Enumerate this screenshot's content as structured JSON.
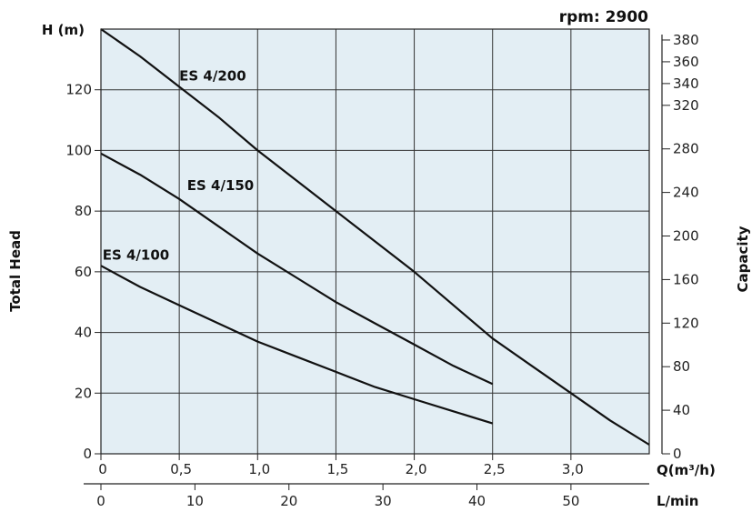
{
  "chart_data": {
    "type": "line",
    "title": "rpm: 2900",
    "ylabel": "Total Head",
    "yunit": "H (m)",
    "y2label": "Capacity",
    "xlabel": "Q(m³/h)",
    "x2label": "L/min",
    "xlim": [
      0,
      3.5
    ],
    "ylim": [
      0,
      140
    ],
    "x2lim": [
      0,
      58.33
    ],
    "y2lim": [
      0,
      390
    ],
    "xticks": [
      0,
      0.5,
      1.0,
      1.5,
      2.0,
      2.5,
      3.0
    ],
    "xtick_labels": [
      "0",
      "0,5",
      "1,0",
      "1,5",
      "2,0",
      "2,5",
      "3,0"
    ],
    "yticks": [
      0,
      20,
      40,
      60,
      80,
      100,
      120
    ],
    "ytick_labels": [
      "0",
      "20",
      "40",
      "60",
      "80",
      "100",
      "120"
    ],
    "x2ticks": [
      0,
      10,
      20,
      30,
      40,
      50
    ],
    "x2tick_labels": [
      "0",
      "10",
      "20",
      "30",
      "40",
      "50"
    ],
    "y2ticks": [
      0,
      40,
      80,
      120,
      160,
      200,
      240,
      280,
      320,
      340,
      360,
      380
    ],
    "y2tick_labels": [
      "0",
      "40",
      "80",
      "120",
      "160",
      "200",
      "240",
      "280",
      "320",
      "340",
      "360",
      "380"
    ],
    "grid": true,
    "series": [
      {
        "name": "ES 4/200",
        "x": [
          0,
          0.25,
          0.5,
          0.75,
          1.0,
          1.25,
          1.5,
          1.75,
          2.0,
          2.25,
          2.5,
          2.75,
          3.0,
          3.25,
          3.5
        ],
        "y": [
          140,
          131,
          121,
          111,
          100,
          90,
          80,
          70,
          60,
          49,
          38,
          29,
          20,
          11,
          3
        ]
      },
      {
        "name": "ES 4/150",
        "x": [
          0,
          0.25,
          0.5,
          0.75,
          1.0,
          1.25,
          1.5,
          1.75,
          2.0,
          2.25,
          2.5
        ],
        "y": [
          99,
          92,
          84,
          75,
          66,
          58,
          50,
          43,
          36,
          29,
          23
        ]
      },
      {
        "name": "ES 4/100",
        "x": [
          0,
          0.25,
          0.5,
          0.75,
          1.0,
          1.25,
          1.5,
          1.75,
          2.0,
          2.25,
          2.5
        ],
        "y": [
          62,
          55,
          49,
          43,
          37,
          32,
          27,
          22,
          18,
          14,
          10
        ]
      }
    ]
  }
}
